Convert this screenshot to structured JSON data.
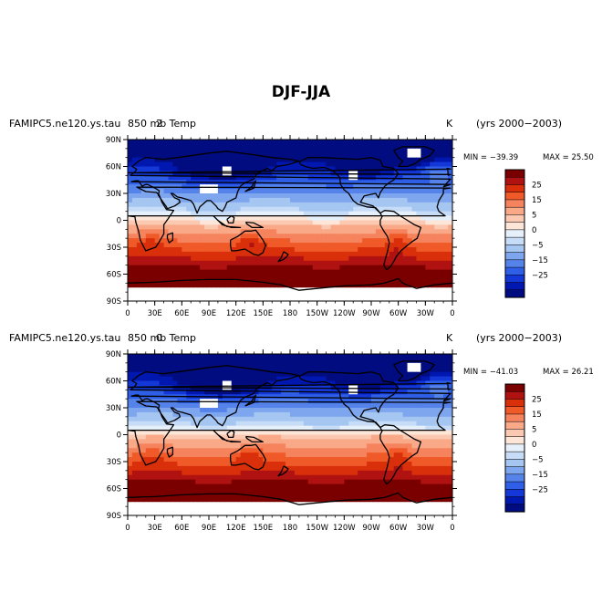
{
  "figure": {
    "title": "DJF-JJA"
  },
  "chart_data": [
    {
      "type": "heatmap",
      "title_left": "FAMIPC5.ne120.ys.tau",
      "title_center": "850 mb  Temp",
      "title_overlap": "2",
      "units": "K",
      "period": "(yrs 2000−2003)",
      "min_label": "MIN = −39.39",
      "max_label": "MAX =  25.50",
      "min": -39.39,
      "max": 25.5,
      "x_ticks": [
        "0",
        "30E",
        "60E",
        "90E",
        "120E",
        "150E",
        "180",
        "150W",
        "120W",
        "90W",
        "60W",
        "30W",
        "0"
      ],
      "y_ticks": [
        "90N",
        "60N",
        "30N",
        "0",
        "30S",
        "60S",
        "90S"
      ],
      "colorbar_labels": [
        "25",
        "15",
        "5",
        "0",
        "−5",
        "−15",
        "−25"
      ]
    },
    {
      "type": "heatmap",
      "title_left": "FAMIPC5.ne120.ys.tau",
      "title_center": "850 mb  Temp",
      "title_overlap": "0",
      "units": "K",
      "period": "(yrs 2000−2003)",
      "min_label": "MIN = −41.03",
      "max_label": "MAX =  26.21",
      "min": -41.03,
      "max": 26.21,
      "x_ticks": [
        "0",
        "30E",
        "60E",
        "90E",
        "120E",
        "150E",
        "180",
        "150W",
        "120W",
        "90W",
        "60W",
        "30W",
        "0"
      ],
      "y_ticks": [
        "90N",
        "60N",
        "30N",
        "0",
        "30S",
        "60S",
        "90S"
      ],
      "colorbar_labels": [
        "25",
        "15",
        "5",
        "0",
        "−5",
        "−15",
        "−25"
      ]
    }
  ],
  "colorbar_colors": [
    "#7a0000",
    "#b01212",
    "#d9300b",
    "#ef5a28",
    "#f5835d",
    "#f9a888",
    "#fbc9b1",
    "#fde6d8",
    "#e6f0fb",
    "#c7dcf6",
    "#a6c6f2",
    "#7ea6ee",
    "#5583ea",
    "#2f5fe6",
    "#1438d8",
    "#0018b0",
    "#000c80"
  ]
}
